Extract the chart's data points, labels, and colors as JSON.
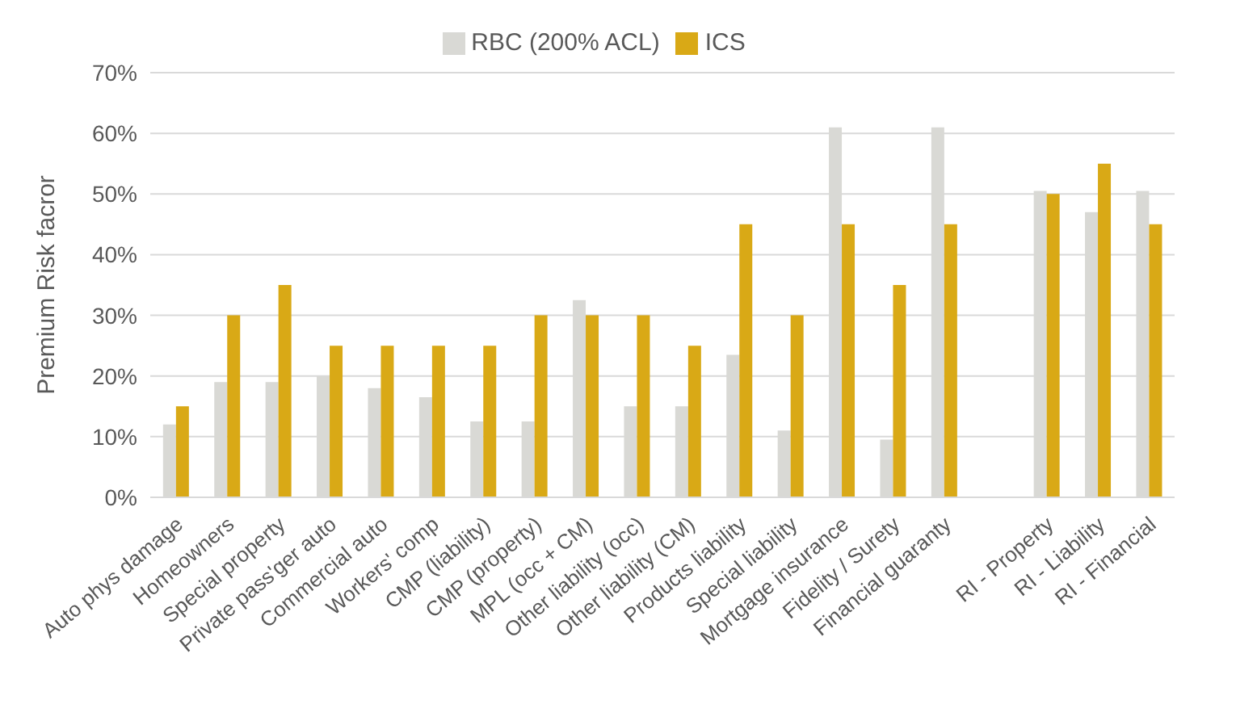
{
  "chart_data": {
    "type": "bar",
    "ylabel": "Premium Risk facror",
    "categories": [
      "Auto phys damage",
      "Homeowners",
      "Special property",
      "Private pass'ger auto",
      "Commercial auto",
      "Workers' comp",
      "CMP (liability)",
      "CMP (property)",
      "MPL (occ + CM)",
      "Other liability (occ)",
      "Other liability (CM)",
      "Products liability",
      "Special liability",
      "Mortgage insurance",
      "Fidelity / Surety",
      "Financial guaranty",
      null,
      "RI - Property",
      "RI - Liability",
      "RI - Financial"
    ],
    "series": [
      {
        "name": "RBC (200% ACL)",
        "color": "#d9d9d5",
        "values": [
          12,
          19,
          19,
          20,
          18,
          16.5,
          12.5,
          12.5,
          32.5,
          15,
          15,
          23.5,
          11,
          61,
          9.5,
          61,
          null,
          50.5,
          47,
          50.5
        ]
      },
      {
        "name": "ICS",
        "color": "#d9a916",
        "values": [
          15,
          30,
          35,
          25,
          25,
          25,
          25,
          30,
          30,
          30,
          25,
          45,
          30,
          45,
          35,
          45,
          null,
          50,
          55,
          45
        ]
      }
    ],
    "ylim": [
      0,
      70
    ],
    "yticks": [
      {
        "value": 0,
        "label": "0%"
      },
      {
        "value": 10,
        "label": "10%"
      },
      {
        "value": 20,
        "label": "20%"
      },
      {
        "value": 30,
        "label": "30%"
      },
      {
        "value": 40,
        "label": "40%"
      },
      {
        "value": 50,
        "label": "50%"
      },
      {
        "value": 60,
        "label": "60%"
      },
      {
        "value": 70,
        "label": "70%"
      }
    ],
    "grid": "y",
    "legend": "top"
  }
}
